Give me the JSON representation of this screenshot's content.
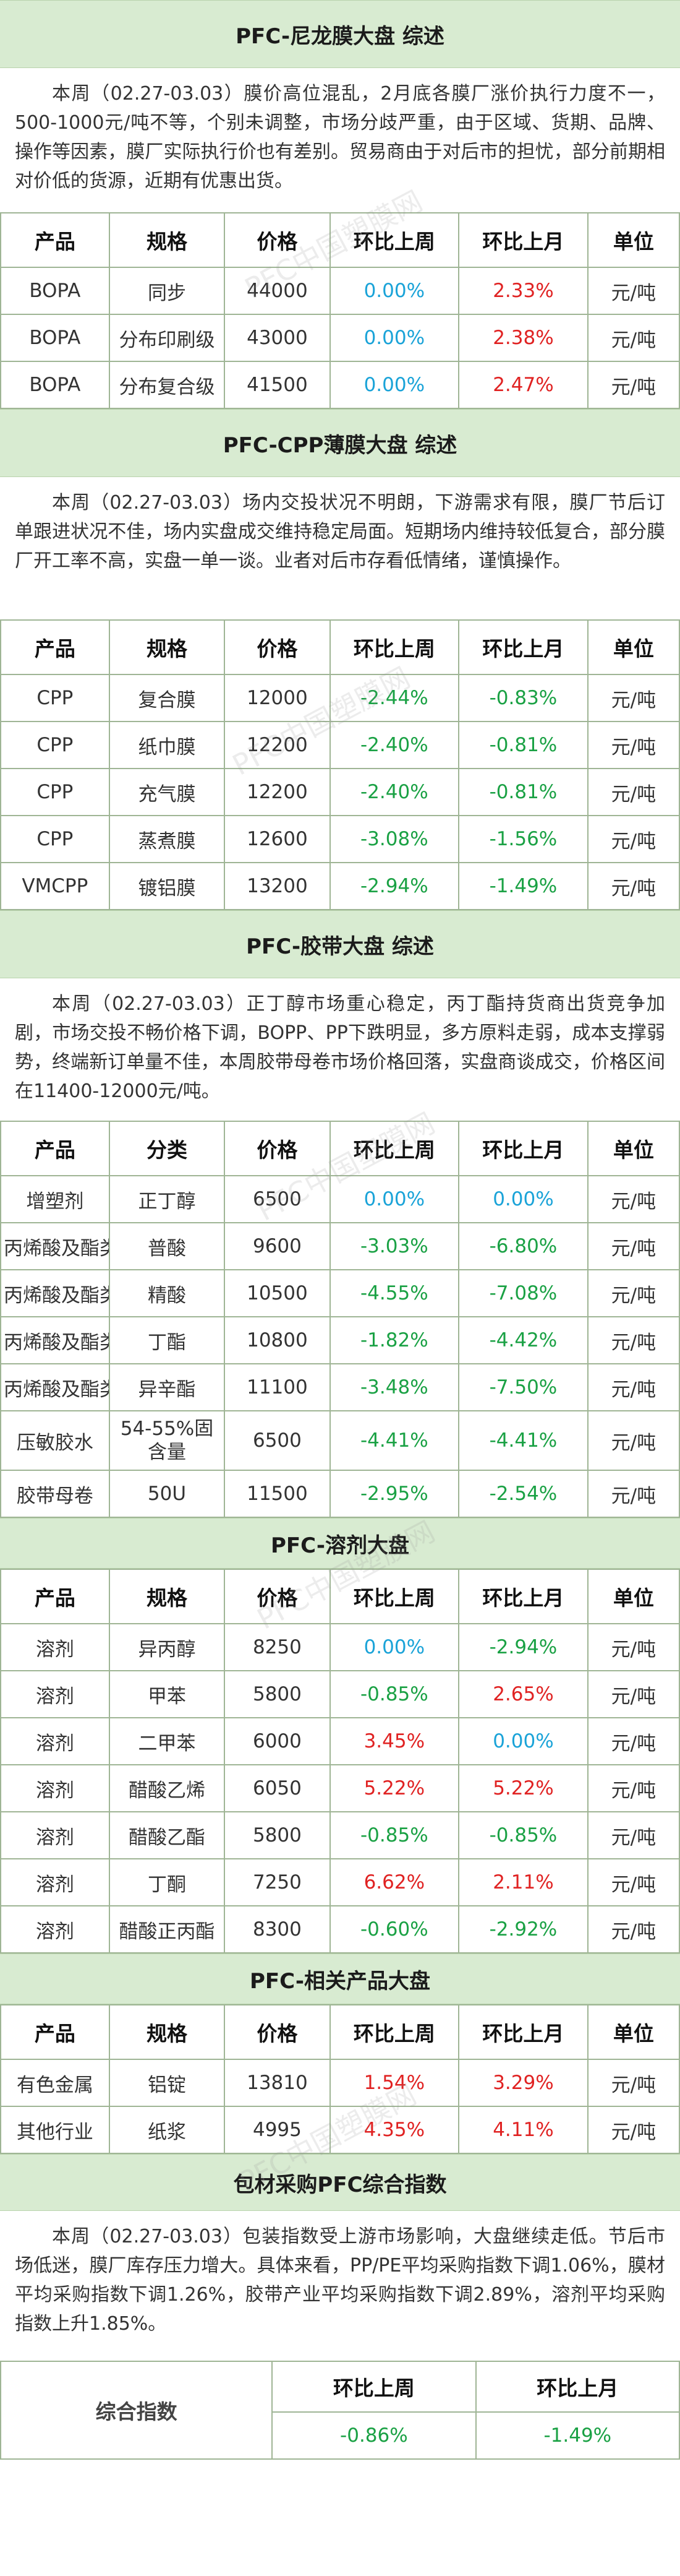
{
  "sections": [
    {
      "title": "PFC-尼龙膜大盘 综述",
      "summary": "本周（02.27-03.03）膜价高位混乱，2月底各膜厂涨价执行力度不一，500-1000元/吨不等，个别未调整，市场分歧严重，由于区域、货期、品牌、操作等因素，膜厂实际执行价也有差别。贸易商由于对后市的担忧，部分前期相对价低的货源，近期有优惠出货。",
      "headers": [
        "产品",
        "规格",
        "价格",
        "环比上周",
        "环比上月",
        "单位"
      ],
      "rows": [
        [
          "BOPA",
          "同步",
          "44000",
          "0.00%",
          "2.33%",
          "元/吨"
        ],
        [
          "BOPA",
          "分布印刷级",
          "43000",
          "0.00%",
          "2.38%",
          "元/吨"
        ],
        [
          "BOPA",
          "分布复合级",
          "41500",
          "0.00%",
          "2.47%",
          "元/吨"
        ]
      ]
    },
    {
      "title": "PFC-CPP薄膜大盘 综述",
      "summary": "本周（02.27-03.03）场内交投状况不明朗，下游需求有限，膜厂节后订单跟进状况不佳，场内实盘成交维持稳定局面。短期场内维持较低复合，部分膜厂开工率不高，实盘一单一谈。业者对后市存看低情绪，谨慎操作。",
      "headers": [
        "产品",
        "规格",
        "价格",
        "环比上周",
        "环比上月",
        "单位"
      ],
      "rows": [
        [
          "CPP",
          "复合膜",
          "12000",
          "-2.44%",
          "-0.83%",
          "元/吨"
        ],
        [
          "CPP",
          "纸巾膜",
          "12200",
          "-2.40%",
          "-0.81%",
          "元/吨"
        ],
        [
          "CPP",
          "充气膜",
          "12200",
          "-2.40%",
          "-0.81%",
          "元/吨"
        ],
        [
          "CPP",
          "蒸煮膜",
          "12600",
          "-3.08%",
          "-1.56%",
          "元/吨"
        ],
        [
          "VMCPP",
          "镀铝膜",
          "13200",
          "-2.94%",
          "-1.49%",
          "元/吨"
        ]
      ]
    },
    {
      "title": "PFC-胶带大盘 综述",
      "summary": "本周（02.27-03.03）正丁醇市场重心稳定，丙丁酯持货商出货竞争加剧，市场交投不畅价格下调，BOPP、PP下跌明显，多方原料走弱，成本支撑弱势，终端新订单量不佳，本周胶带母卷市场价格回落，实盘商谈成交，价格区间在11400-12000元/吨。",
      "headers": [
        "产品",
        "分类",
        "价格",
        "环比上周",
        "环比上月",
        "单位"
      ],
      "rows": [
        [
          "增塑剂",
          "正丁醇",
          "6500",
          "0.00%",
          "0.00%",
          "元/吨"
        ],
        [
          "丙烯酸及酯类",
          "普酸",
          "9600",
          "-3.03%",
          "-6.80%",
          "元/吨"
        ],
        [
          "丙烯酸及酯类",
          "精酸",
          "10500",
          "-4.55%",
          "-7.08%",
          "元/吨"
        ],
        [
          "丙烯酸及酯类",
          "丁酯",
          "10800",
          "-1.82%",
          "-4.42%",
          "元/吨"
        ],
        [
          "丙烯酸及酯类",
          "异辛酯",
          "11100",
          "-3.48%",
          "-7.50%",
          "元/吨"
        ],
        [
          "压敏胶水",
          "54-55%固含量",
          "6500",
          "-4.41%",
          "-4.41%",
          "元/吨"
        ],
        [
          "胶带母卷",
          "50U",
          "11500",
          "-2.95%",
          "-2.54%",
          "元/吨"
        ]
      ]
    },
    {
      "title": "PFC-溶剂大盘",
      "summary": "",
      "headers": [
        "产品",
        "规格",
        "价格",
        "环比上周",
        "环比上月",
        "单位"
      ],
      "rows": [
        [
          "溶剂",
          "异丙醇",
          "8250",
          "0.00%",
          "-2.94%",
          "元/吨"
        ],
        [
          "溶剂",
          "甲苯",
          "5800",
          "-0.85%",
          "2.65%",
          "元/吨"
        ],
        [
          "溶剂",
          "二甲苯",
          "6000",
          "3.45%",
          "0.00%",
          "元/吨"
        ],
        [
          "溶剂",
          "醋酸乙烯",
          "6050",
          "5.22%",
          "5.22%",
          "元/吨"
        ],
        [
          "溶剂",
          "醋酸乙酯",
          "5800",
          "-0.85%",
          "-0.85%",
          "元/吨"
        ],
        [
          "溶剂",
          "丁酮",
          "7250",
          "6.62%",
          "2.11%",
          "元/吨"
        ],
        [
          "溶剂",
          "醋酸正丙酯",
          "8300",
          "-0.60%",
          "-2.92%",
          "元/吨"
        ]
      ]
    },
    {
      "title": "PFC-相关产品大盘",
      "summary": "",
      "headers": [
        "产品",
        "规格",
        "价格",
        "环比上周",
        "环比上月",
        "单位"
      ],
      "rows": [
        [
          "有色金属",
          "铝锭",
          "13810",
          "1.54%",
          "3.29%",
          "元/吨"
        ],
        [
          "其他行业",
          "纸浆",
          "4995",
          "4.35%",
          "4.11%",
          "元/吨"
        ]
      ]
    }
  ],
  "index": {
    "title": "包材采购PFC综合指数",
    "summary": "本周（02.27-03.03）包装指数受上游市场影响，大盘继续走低。节后市场低迷，膜厂库存压力增大。具体来看，PP/PE平均采购指数下调1.06%，膜材平均采购指数下调1.26%，胶带产业平均采购指数下调2.89%，溶剂平均采购指数上升1.85%。",
    "label": "综合指数",
    "headers": [
      "环比上周",
      "环比上月"
    ],
    "values": [
      "-0.86%",
      "-1.49%"
    ]
  },
  "watermark_text": "PFC中国塑膜网",
  "colors": {
    "up": "#e02222",
    "down": "#1aa144",
    "flat": "#1aa3d8",
    "header_bg": "#d8ebd1",
    "border": "#9fb595"
  }
}
